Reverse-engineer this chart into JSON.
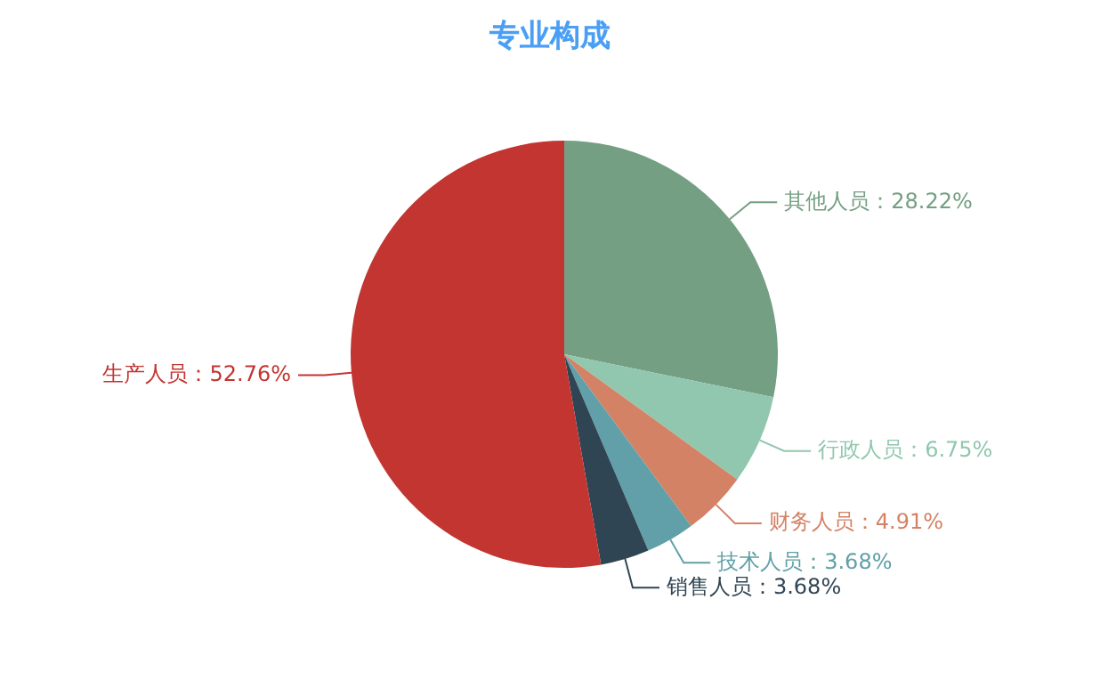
{
  "chart_data": {
    "type": "pie",
    "title": "专业构成",
    "categories": [
      "其他人员",
      "行政人员",
      "财务人员",
      "技术人员",
      "销售人员",
      "生产人员"
    ],
    "values": [
      28.22,
      6.75,
      4.91,
      3.68,
      3.68,
      52.76
    ],
    "value_labels": [
      "28.22%",
      "6.75%",
      "4.91%",
      "3.68%",
      "3.68%",
      "52.76%"
    ],
    "colors": [
      "#749f83",
      "#91c7ae",
      "#d48265",
      "#61a0a8",
      "#2f4554",
      "#c23531"
    ],
    "legend": false
  }
}
